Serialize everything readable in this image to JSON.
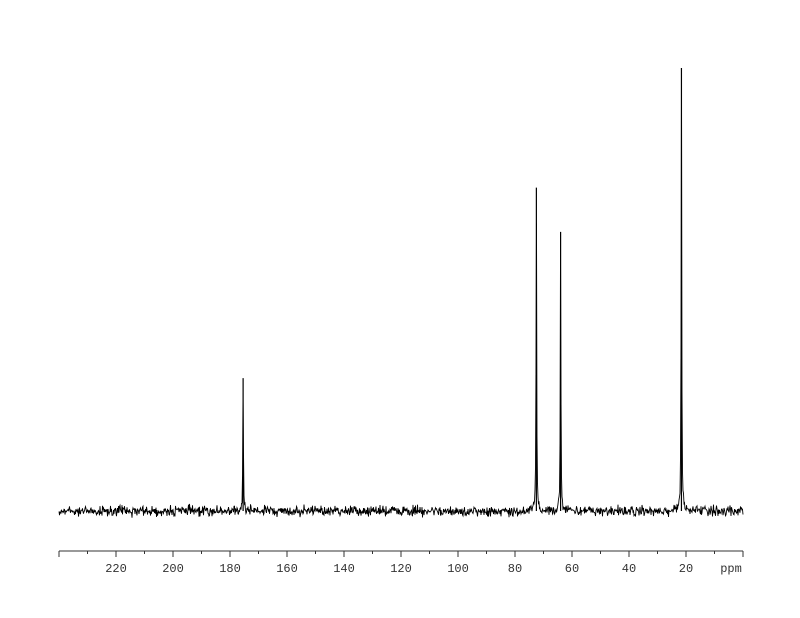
{
  "chart_data": {
    "type": "line",
    "title": "",
    "xlabel": "ppm",
    "ylabel": "",
    "xlim": [
      240,
      0
    ],
    "x_reversed": true,
    "major_tick_step": 20,
    "minor_tick_step": 10,
    "tick_labels": [
      "220",
      "200",
      "180",
      "160",
      "140",
      "120",
      "100",
      "80",
      "60",
      "40",
      "20"
    ],
    "grid": false,
    "line_color": "#000000",
    "series": [
      {
        "peaks": [
          {
            "ppm": 175.4,
            "relative_intensity": 30
          },
          {
            "ppm": 72.5,
            "relative_intensity": 73
          },
          {
            "ppm": 64.0,
            "relative_intensity": 63
          },
          {
            "ppm": 21.6,
            "relative_intensity": 100
          }
        ]
      }
    ]
  }
}
